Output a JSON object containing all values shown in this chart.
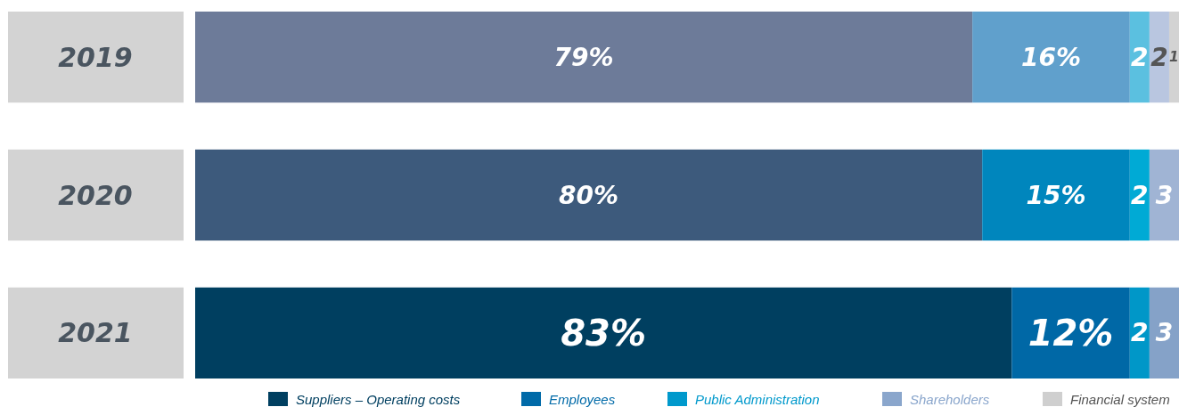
{
  "chart_data": {
    "type": "bar",
    "orientation": "horizontal",
    "stacked": true,
    "legend": "bottom",
    "categories": [
      "2019",
      "2020",
      "2021"
    ],
    "series": [
      {
        "name": "Suppliers – Operating costs",
        "color": "#003f60",
        "colors": [
          "#6d7b99",
          "#3d5a7c",
          "#003f60"
        ],
        "values": [
          79,
          80,
          83
        ],
        "value_labels": [
          "79%",
          "80%",
          "83%"
        ]
      },
      {
        "name": "Employees",
        "color": "#006aa8",
        "colors": [
          "#60a0cc",
          "#0086bd",
          "#0068a6"
        ],
        "values": [
          16,
          15,
          12
        ],
        "value_labels": [
          "16%",
          "15%",
          "12%"
        ]
      },
      {
        "name": "Public Administration",
        "color": "#0099cc",
        "colors": [
          "#5bc0e0",
          "#00aad5",
          "#0097c8"
        ],
        "values": [
          2,
          2,
          2
        ],
        "value_labels": [
          "2",
          "2",
          "2"
        ]
      },
      {
        "name": "Shareholders",
        "color": "#8aa6cc",
        "colors": [
          "#b9c6e0",
          "#a0b4d4",
          "#85a2c8"
        ],
        "values": [
          2,
          3,
          3
        ],
        "value_labels": [
          "2",
          "3",
          "3"
        ]
      },
      {
        "name": "Financial system",
        "color": "#cfcfcf",
        "colors": [
          "#d3d3d3",
          null,
          null
        ],
        "values": [
          1,
          null,
          null
        ],
        "value_labels": [
          "1",
          null,
          null
        ]
      }
    ]
  }
}
